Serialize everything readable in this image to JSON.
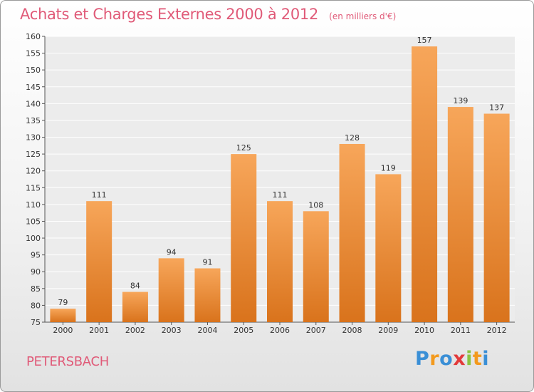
{
  "header": {
    "title": "Achats et Charges Externes 2000 à 2012",
    "subtitle": "(en milliers d'€)"
  },
  "footer": {
    "commune": "PETERSBACH",
    "brand": {
      "letters": [
        "P",
        "r",
        "o",
        "x",
        "i",
        "t",
        "i"
      ],
      "colors": [
        "#3a8fd6",
        "#f39a1e",
        "#3a8fd6",
        "#e23a3a",
        "#8ac43f",
        "#f39a1e",
        "#3a8fd6"
      ]
    }
  },
  "chart_data": {
    "type": "bar",
    "categories": [
      "2000",
      "2001",
      "2002",
      "2003",
      "2004",
      "2005",
      "2006",
      "2007",
      "2008",
      "2009",
      "2010",
      "2011",
      "2012"
    ],
    "values": [
      79,
      111,
      84,
      94,
      91,
      125,
      111,
      108,
      128,
      119,
      157,
      139,
      137
    ],
    "title": "Achats et Charges Externes 2000 à 2012",
    "ylim": [
      75,
      160
    ],
    "yticks": [
      75,
      80,
      85,
      90,
      95,
      100,
      105,
      110,
      115,
      120,
      125,
      130,
      135,
      140,
      145,
      150,
      155,
      160
    ],
    "grid": true,
    "bar_color_top": "#f7a65a",
    "bar_color_bottom": "#d9731c"
  }
}
